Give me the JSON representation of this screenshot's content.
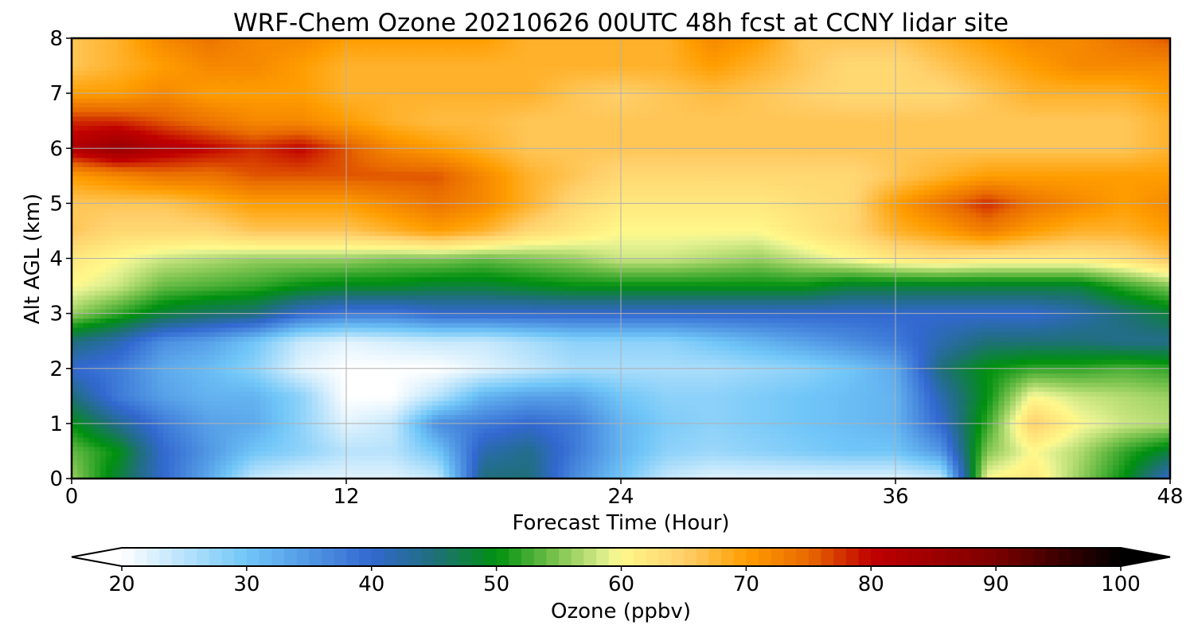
{
  "chart_data": {
    "type": "heatmap",
    "title": "WRF-Chem Ozone  20210626 00UTC 48h fcst at CCNY lidar site",
    "xlabel": "Forecast Time (Hour)",
    "ylabel": "Alt AGL (km)",
    "xlim": [
      0,
      48
    ],
    "ylim": [
      0,
      8
    ],
    "x_ticks": [
      0,
      12,
      24,
      36,
      48
    ],
    "y_ticks": [
      0,
      1,
      2,
      3,
      4,
      5,
      6,
      7,
      8
    ],
    "grid": true,
    "x": [
      0,
      2,
      4,
      6,
      8,
      10,
      12,
      14,
      16,
      18,
      20,
      22,
      24,
      26,
      28,
      30,
      32,
      34,
      36,
      38,
      40,
      42,
      44,
      46,
      48
    ],
    "y": [
      0,
      0.5,
      1,
      1.5,
      2,
      2.5,
      3,
      3.5,
      4,
      4.5,
      5,
      5.5,
      6,
      6.5,
      7,
      7.5,
      8
    ],
    "z": [
      [
        56,
        48,
        40,
        33,
        24,
        22,
        22,
        22,
        24,
        45,
        45,
        36,
        30,
        24,
        22,
        22,
        22,
        22,
        22,
        24,
        60,
        62,
        56,
        50,
        40
      ],
      [
        54,
        50,
        40,
        35,
        30,
        28,
        25,
        25,
        30,
        42,
        44,
        38,
        32,
        28,
        27,
        28,
        29,
        30,
        30,
        35,
        55,
        60,
        57,
        52,
        48
      ],
      [
        50,
        44,
        38,
        34,
        33,
        28,
        22,
        24,
        36,
        38,
        40,
        38,
        32,
        29,
        28,
        29,
        30,
        31,
        32,
        40,
        52,
        65,
        60,
        58,
        57
      ],
      [
        45,
        38,
        34,
        32,
        32,
        28,
        20,
        20,
        25,
        32,
        34,
        34,
        30,
        28,
        28,
        29,
        30,
        31,
        32,
        42,
        50,
        60,
        58,
        57,
        56
      ],
      [
        40,
        38,
        33,
        31,
        28,
        22,
        20,
        20,
        20,
        22,
        24,
        26,
        26,
        26,
        26,
        27,
        28,
        30,
        33,
        45,
        50,
        52,
        52,
        53,
        52
      ],
      [
        45,
        42,
        36,
        34,
        30,
        24,
        22,
        23,
        24,
        24,
        26,
        28,
        28,
        28,
        30,
        32,
        34,
        36,
        38,
        42,
        45,
        45,
        45,
        44,
        44
      ],
      [
        56,
        52,
        48,
        46,
        45,
        40,
        38,
        38,
        40,
        40,
        40,
        40,
        40,
        40,
        40,
        40,
        40,
        40,
        40,
        40,
        40,
        40,
        42,
        45,
        48
      ],
      [
        60,
        58,
        54,
        53,
        52,
        50,
        49,
        49,
        48,
        48,
        49,
        50,
        50,
        50,
        50,
        50,
        50,
        48,
        48,
        48,
        48,
        48,
        48,
        52,
        55
      ],
      [
        62,
        60,
        58,
        57,
        56,
        56,
        56,
        55,
        55,
        54,
        55,
        56,
        58,
        58,
        57,
        56,
        58,
        60,
        62,
        63,
        62,
        62,
        62,
        63,
        66
      ],
      [
        66,
        64,
        64,
        64,
        66,
        66,
        66,
        68,
        70,
        68,
        64,
        62,
        60,
        60,
        60,
        60,
        62,
        64,
        68,
        70,
        73,
        70,
        68,
        68,
        70
      ],
      [
        66,
        66,
        66,
        68,
        70,
        70,
        70,
        72,
        74,
        72,
        68,
        64,
        62,
        62,
        62,
        62,
        63,
        64,
        70,
        74,
        78,
        74,
        72,
        70,
        72
      ],
      [
        70,
        72,
        74,
        74,
        76,
        76,
        76,
        76,
        76,
        72,
        68,
        66,
        64,
        64,
        64,
        64,
        64,
        64,
        66,
        68,
        70,
        70,
        70,
        70,
        70
      ],
      [
        82,
        86,
        82,
        80,
        78,
        80,
        76,
        72,
        70,
        68,
        66,
        66,
        66,
        66,
        66,
        66,
        66,
        66,
        66,
        66,
        66,
        66,
        66,
        66,
        68
      ],
      [
        78,
        78,
        76,
        74,
        72,
        72,
        70,
        68,
        67,
        67,
        66,
        66,
        66,
        66,
        66,
        66,
        66,
        66,
        66,
        66,
        66,
        66,
        66,
        66,
        68
      ],
      [
        70,
        70,
        72,
        70,
        70,
        70,
        68,
        68,
        68,
        68,
        68,
        66,
        65,
        66,
        67,
        66,
        65,
        64,
        64,
        64,
        66,
        68,
        68,
        68,
        70
      ],
      [
        66,
        68,
        70,
        72,
        72,
        70,
        68,
        68,
        68,
        68,
        68,
        68,
        68,
        68,
        70,
        68,
        66,
        64,
        64,
        66,
        68,
        70,
        72,
        72,
        72
      ],
      [
        66,
        68,
        72,
        74,
        72,
        72,
        70,
        70,
        70,
        70,
        68,
        68,
        68,
        68,
        72,
        70,
        66,
        66,
        66,
        68,
        70,
        72,
        72,
        74,
        76
      ]
    ],
    "colorbar": {
      "label": "Ozone  (ppbv)",
      "range": [
        20,
        100
      ],
      "ticks": [
        20,
        30,
        40,
        50,
        60,
        70,
        80,
        90,
        100
      ],
      "extend": "both",
      "orientation": "horizontal",
      "placement": "bottom"
    },
    "colormap_stops": [
      [
        20,
        "#ffffff"
      ],
      [
        30,
        "#70c6f8"
      ],
      [
        40,
        "#3268d0"
      ],
      [
        45,
        "#1f6f7a"
      ],
      [
        50,
        "#00900f"
      ],
      [
        55,
        "#80c552"
      ],
      [
        59,
        "#e6f292"
      ],
      [
        60,
        "#fff88a"
      ],
      [
        65,
        "#ffd06c"
      ],
      [
        70,
        "#ff9d00"
      ],
      [
        75,
        "#e86a00"
      ],
      [
        80,
        "#c00000"
      ],
      [
        90,
        "#7a0000"
      ],
      [
        100,
        "#000000"
      ]
    ]
  }
}
